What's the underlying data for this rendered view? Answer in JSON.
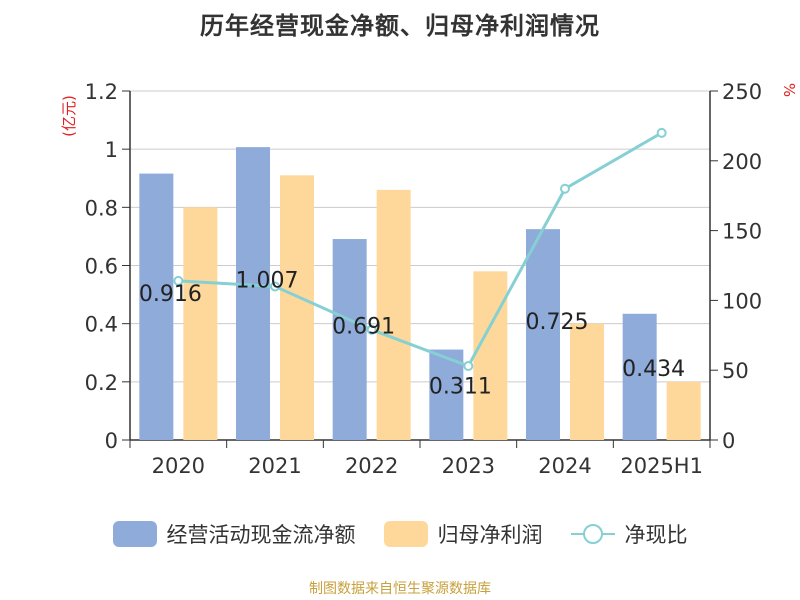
{
  "title": "历年经营现金净额、归母净利润情况",
  "source": "制图数据来自恒生聚源数据库",
  "colors": {
    "cash": "#8eabda",
    "profit": "#fdd89a",
    "ratio": "#86d0d4",
    "unit_text": "#e02020",
    "axis": "#333333",
    "grid": "#cccccc"
  },
  "chart_data": {
    "type": "bar",
    "title": "历年经营现金净额、归母净利润情况",
    "categories": [
      "2020",
      "2021",
      "2022",
      "2023",
      "2024",
      "2025H1"
    ],
    "y_left": {
      "label": "(亿元)",
      "range": [
        0,
        1.2
      ],
      "ticks": [
        "0",
        "0.2",
        "0.4",
        "0.6",
        "0.8",
        "1",
        "1.2"
      ]
    },
    "y_right": {
      "label": "%",
      "range": [
        0,
        250
      ],
      "ticks": [
        "0",
        "50",
        "100",
        "150",
        "200",
        "250"
      ]
    },
    "series": [
      {
        "name": "经营活动现金流净额",
        "type": "bar",
        "axis": "left",
        "values": [
          0.916,
          1.007,
          0.691,
          0.311,
          0.725,
          0.434
        ],
        "labels": [
          "0.916",
          "1.007",
          "0.691",
          "0.311",
          "0.725",
          "0.434"
        ]
      },
      {
        "name": "归母净利润",
        "type": "bar",
        "axis": "left",
        "values": [
          0.8,
          0.91,
          0.86,
          0.58,
          0.4,
          0.2
        ]
      },
      {
        "name": "净现比",
        "type": "line",
        "axis": "right",
        "values": [
          114,
          110,
          79,
          53,
          180,
          220
        ]
      }
    ],
    "grid": true,
    "legend_position": "bottom"
  },
  "legend": [
    {
      "label": "经营活动现金流净额",
      "kind": "bar",
      "color": "#8eabda"
    },
    {
      "label": "归母净利润",
      "kind": "bar",
      "color": "#fdd89a"
    },
    {
      "label": "净现比",
      "kind": "line",
      "color": "#86d0d4"
    }
  ]
}
